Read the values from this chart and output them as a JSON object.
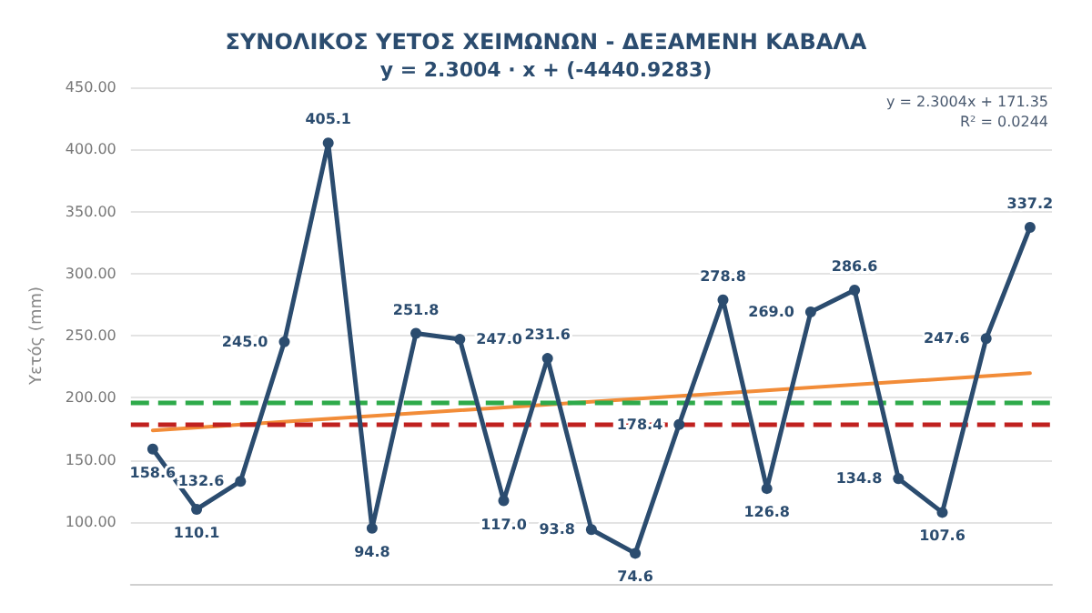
{
  "chart_data": {
    "type": "line",
    "title": "ΣΥΝΟΛΙΚΟΣ ΥΕΤΟΣ ΧΕΙΜΩΝΩΝ - ΔΕΞΑΜΕΝΗ ΚΑΒΑΛΑ",
    "subtitle": "y = 2.3004 · x + (-4440.9283)",
    "ylabel": "Υετός (mm)",
    "categories": [
      null,
      null,
      null,
      null,
      null,
      null,
      null,
      null,
      null,
      null,
      null,
      null,
      null,
      null,
      null,
      null,
      null,
      null,
      null,
      null,
      null
    ],
    "series": [
      {
        "color": "#2b4c6f",
        "values": [
          158.6,
          110.1,
          132.6,
          245.0,
          405.1,
          94.8,
          251.8,
          247.0,
          117.0,
          231.6,
          93.8,
          74.6,
          178.4,
          278.8,
          126.8,
          269.0,
          286.6,
          134.8,
          107.6,
          247.6,
          337.2
        ],
        "value_labels": [
          "158.6",
          "110.1",
          "132.6",
          "245.0",
          "405.1",
          "94.8",
          "251.8",
          "247.0",
          "117.0",
          "231.6",
          "93.8",
          "74.6",
          "178.4",
          "278.8",
          "126.8",
          "269.0",
          "286.6",
          "134.8",
          "107.6",
          "247.6",
          "337.2"
        ]
      },
      {
        "type": "line",
        "color": "#f28c38",
        "marker": "none",
        "values": [
          173.7,
          null,
          null,
          null,
          null,
          null,
          null,
          null,
          null,
          null,
          null,
          null,
          null,
          null,
          null,
          null,
          null,
          null,
          null,
          null,
          219.7
        ]
      }
    ],
    "ylim": [
      50,
      450
    ],
    "yticks": [
      {
        "value": 100,
        "label": "100.00"
      },
      {
        "value": 150,
        "label": "150.00"
      },
      {
        "value": 200,
        "label": "200.00"
      },
      {
        "value": 250,
        "label": "250.00"
      },
      {
        "value": 300,
        "label": "300.00"
      },
      {
        "value": 350,
        "label": "350.00"
      },
      {
        "value": 400,
        "label": "400.00"
      },
      {
        "value": 450,
        "label": "450.00"
      }
    ],
    "ref_lines": [
      {
        "axis": "y",
        "value": 196,
        "color": "#2eaa4a",
        "line_style": "dashed"
      },
      {
        "axis": "y",
        "value": 178,
        "color": "#c0211f",
        "line_style": "dashed"
      }
    ],
    "annotations": [
      "y = 2.3004x + 171.35",
      "R² = 0.0244"
    ],
    "grid": "y",
    "marker": "circle",
    "line_style": "solid"
  }
}
